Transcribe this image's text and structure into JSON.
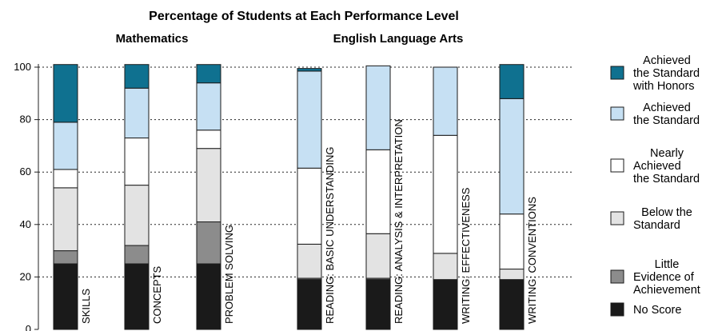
{
  "chart_data": {
    "type": "bar",
    "stacked": true,
    "title": "Percentage of Students at Each Performance Level",
    "groups": [
      {
        "label": "Mathematics",
        "categories": [
          "SKILLS",
          "CONCEPTS",
          "PROBLEM SOLVING"
        ]
      },
      {
        "label": "English Language Arts",
        "categories": [
          "READING: BASIC UNDERSTANDING",
          "READING: ANALYSIS & INTERPRETATION",
          "WRITING: EFFECTIVENESS",
          "WRITING: CONVENTIONS"
        ]
      }
    ],
    "categories": [
      "SKILLS",
      "CONCEPTS",
      "PROBLEM SOLVING",
      "READING: BASIC UNDERSTANDING",
      "READING: ANALYSIS & INTERPRETATION",
      "WRITING: EFFECTIVENESS",
      "WRITING: CONVENTIONS"
    ],
    "series": [
      {
        "name": "No Score",
        "color": "#1a1a1a",
        "values": [
          25,
          25,
          25,
          19,
          19,
          19,
          19
        ]
      },
      {
        "name": "Little Evidence of Achievement",
        "color": "#8c8c8c",
        "values": [
          5,
          7,
          16,
          0.5,
          0.5,
          0,
          0
        ]
      },
      {
        "name": "Below the Standard",
        "color": "#e3e3e3",
        "values": [
          24,
          23,
          28,
          13,
          17,
          10,
          4
        ]
      },
      {
        "name": "Nearly Achieved the Standard",
        "color": "#ffffff",
        "values": [
          7,
          18,
          7,
          29,
          32,
          45,
          21
        ]
      },
      {
        "name": "Achieved the Standard",
        "color": "#c6e0f3",
        "values": [
          18,
          19,
          18,
          37,
          32,
          26,
          44
        ]
      },
      {
        "name": "Achieved the Standard with Honors",
        "color": "#0f7190",
        "values": [
          22,
          9,
          7,
          1,
          0,
          0,
          13
        ]
      }
    ],
    "legend_order": [
      {
        "name": "Achieved the Standard with Honors",
        "lines": [
          "Achieved",
          "the Standard",
          "with Honors"
        ],
        "color": "#0f7190"
      },
      {
        "name": "Achieved the Standard",
        "lines": [
          "Achieved",
          "the Standard"
        ],
        "color": "#c6e0f3"
      },
      {
        "name": "Nearly Achieved the Standard",
        "lines": [
          "Nearly",
          "Achieved",
          "the Standard"
        ],
        "color": "#ffffff"
      },
      {
        "name": "Below the Standard",
        "lines": [
          "Below the",
          "Standard"
        ],
        "color": "#e3e3e3"
      },
      {
        "name": "Little Evidence of Achievement",
        "lines": [
          "Little",
          "Evidence of",
          "Achievement"
        ],
        "color": "#8c8c8c"
      },
      {
        "name": "No Score",
        "lines": [
          "No Score"
        ],
        "color": "#1a1a1a"
      }
    ],
    "y_ticks": [
      "0",
      "20",
      "40",
      "60",
      "80",
      "100"
    ],
    "ylim": [
      0,
      100
    ],
    "grid": true,
    "legend_position": "right"
  }
}
